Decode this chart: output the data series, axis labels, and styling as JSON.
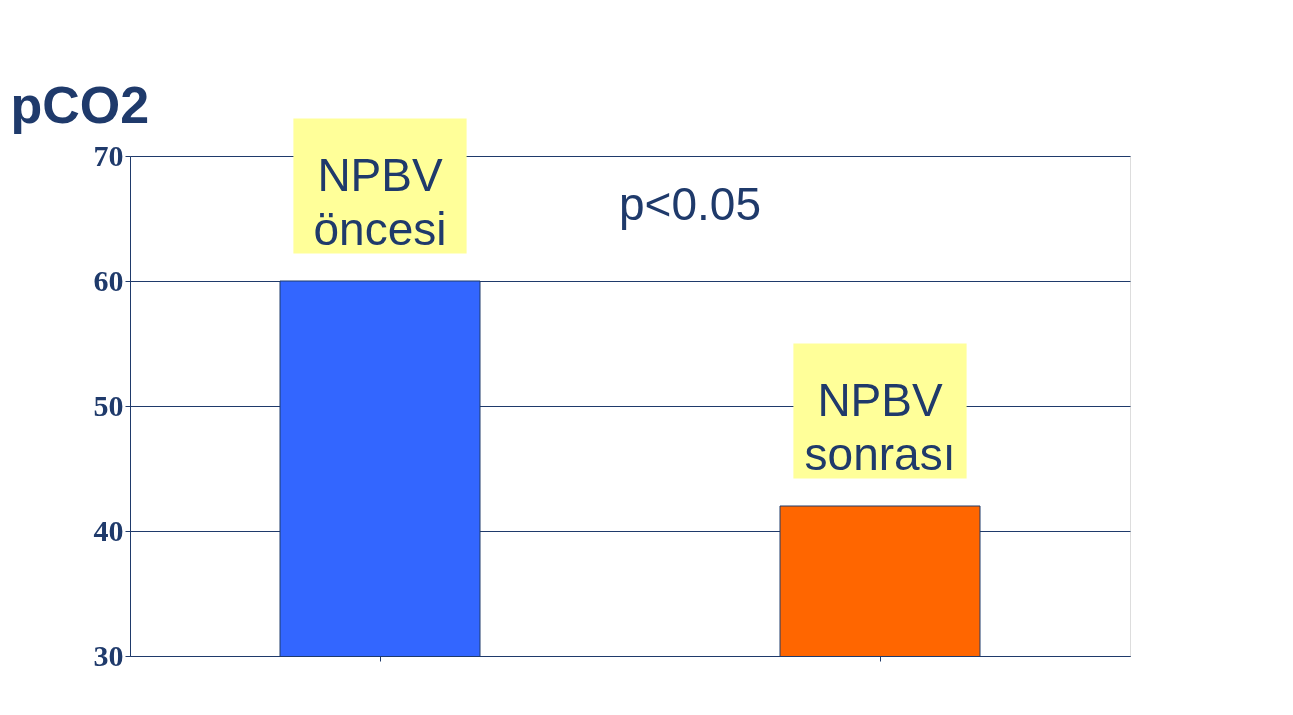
{
  "chart_data": {
    "type": "bar",
    "ylabel": "pCO2",
    "categories": [
      "NPBV öncesi",
      "NPBV sonrası"
    ],
    "values": [
      60,
      42
    ],
    "colors": [
      "#3366ff",
      "#ff6600"
    ],
    "ylim": [
      30,
      70
    ],
    "yticks": [
      30,
      40,
      50,
      60,
      70
    ],
    "grid": "y",
    "tick_labels": "y",
    "annotations": [
      "p<0.05"
    ]
  }
}
